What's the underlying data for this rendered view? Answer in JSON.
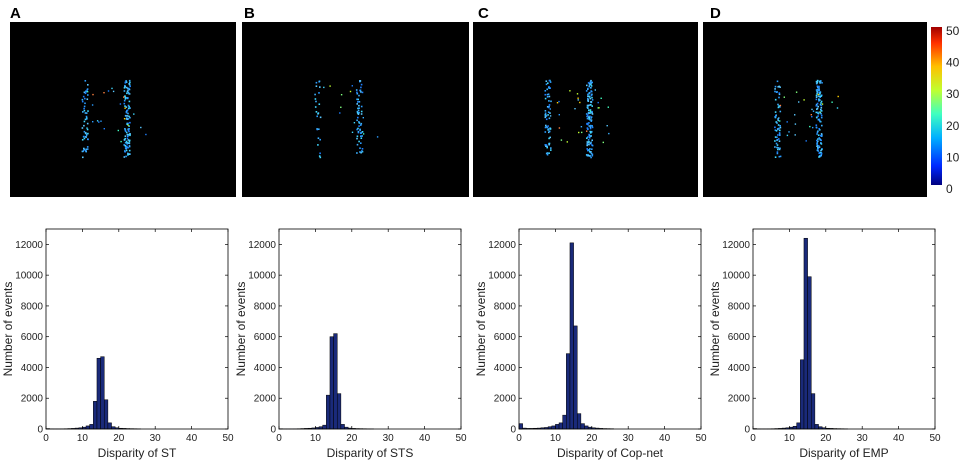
{
  "panels": [
    {
      "letter": "A"
    },
    {
      "letter": "B"
    },
    {
      "letter": "C"
    },
    {
      "letter": "D"
    }
  ],
  "colorbar": {
    "ticks": [
      "50",
      "40",
      "30",
      "20",
      "10",
      "0"
    ],
    "range": [
      0,
      50
    ],
    "colors": [
      "#00007f",
      "#0050ff",
      "#00c8ff",
      "#7fff7f",
      "#ffd000",
      "#ff4000",
      "#b00000"
    ]
  },
  "event_maps": {
    "background": "#000000",
    "dominant_color": "#40b0ff",
    "shape": "letter-H"
  },
  "chart_data": [
    {
      "type": "bar",
      "xlabel": "Disparity of ST",
      "ylabel": "Number of events",
      "xlim": [
        0,
        50
      ],
      "ylim": [
        0,
        13000
      ],
      "xticks": [
        "0",
        "10",
        "20",
        "30",
        "40",
        "50"
      ],
      "yticks": [
        "0",
        "2000",
        "4000",
        "6000",
        "8000",
        "10000",
        "12000"
      ],
      "bin_width": 1,
      "bins": [
        0,
        1,
        2,
        3,
        4,
        5,
        6,
        7,
        8,
        9,
        10,
        11,
        12,
        13,
        14,
        15,
        16,
        17,
        18,
        19,
        20,
        21,
        22,
        23,
        24,
        25
      ],
      "values": [
        30,
        15,
        10,
        10,
        15,
        20,
        30,
        40,
        60,
        80,
        120,
        200,
        300,
        1800,
        4600,
        4700,
        1900,
        400,
        150,
        80,
        50,
        40,
        30,
        25,
        20,
        15
      ],
      "bar_color": "#1a2a7a"
    },
    {
      "type": "bar",
      "xlabel": "Disparity of STS",
      "ylabel": "Number of events",
      "xlim": [
        0,
        50
      ],
      "ylim": [
        0,
        13000
      ],
      "xticks": [
        "0",
        "10",
        "20",
        "30",
        "40",
        "50"
      ],
      "yticks": [
        "0",
        "2000",
        "4000",
        "6000",
        "8000",
        "10000",
        "12000"
      ],
      "bin_width": 1,
      "bins": [
        0,
        1,
        2,
        3,
        4,
        5,
        6,
        7,
        8,
        9,
        10,
        11,
        12,
        13,
        14,
        15,
        16,
        17,
        18,
        19,
        20,
        21,
        22,
        23,
        24,
        25
      ],
      "values": [
        20,
        10,
        10,
        10,
        15,
        20,
        30,
        40,
        50,
        70,
        100,
        150,
        250,
        2200,
        6000,
        6200,
        2300,
        300,
        120,
        60,
        40,
        30,
        25,
        20,
        15,
        10
      ],
      "bar_color": "#1a2a7a"
    },
    {
      "type": "bar",
      "xlabel": "Disparity of  Cop-net",
      "ylabel": "Number of events",
      "xlim": [
        0,
        50
      ],
      "ylim": [
        0,
        13000
      ],
      "xticks": [
        "0",
        "10",
        "20",
        "30",
        "40",
        "50"
      ],
      "yticks": [
        "0",
        "2000",
        "4000",
        "6000",
        "8000",
        "10000",
        "12000"
      ],
      "bin_width": 1,
      "bins": [
        0,
        1,
        2,
        3,
        4,
        5,
        6,
        7,
        8,
        9,
        10,
        11,
        12,
        13,
        14,
        15,
        16,
        17,
        18,
        19,
        20,
        21,
        22,
        23,
        24,
        25
      ],
      "values": [
        350,
        60,
        40,
        40,
        50,
        60,
        80,
        100,
        150,
        200,
        300,
        400,
        900,
        4900,
        12100,
        6700,
        1000,
        350,
        200,
        120,
        80,
        60,
        40,
        30,
        25,
        20
      ],
      "bar_color": "#1a2a7a"
    },
    {
      "type": "bar",
      "xlabel": "Disparity of EMP",
      "ylabel": "Number of events",
      "xlim": [
        0,
        50
      ],
      "ylim": [
        0,
        13000
      ],
      "xticks": [
        "0",
        "10",
        "20",
        "30",
        "40",
        "50"
      ],
      "yticks": [
        "0",
        "2000",
        "4000",
        "6000",
        "8000",
        "10000",
        "12000"
      ],
      "bin_width": 1,
      "bins": [
        0,
        1,
        2,
        3,
        4,
        5,
        6,
        7,
        8,
        9,
        10,
        11,
        12,
        13,
        14,
        15,
        16,
        17,
        18,
        19,
        20,
        21,
        22,
        23,
        24,
        25
      ],
      "values": [
        30,
        15,
        10,
        10,
        15,
        20,
        30,
        40,
        60,
        80,
        120,
        180,
        400,
        4500,
        12400,
        9900,
        2300,
        300,
        150,
        80,
        50,
        40,
        30,
        25,
        20,
        15
      ],
      "bar_color": "#1a2a7a"
    }
  ]
}
